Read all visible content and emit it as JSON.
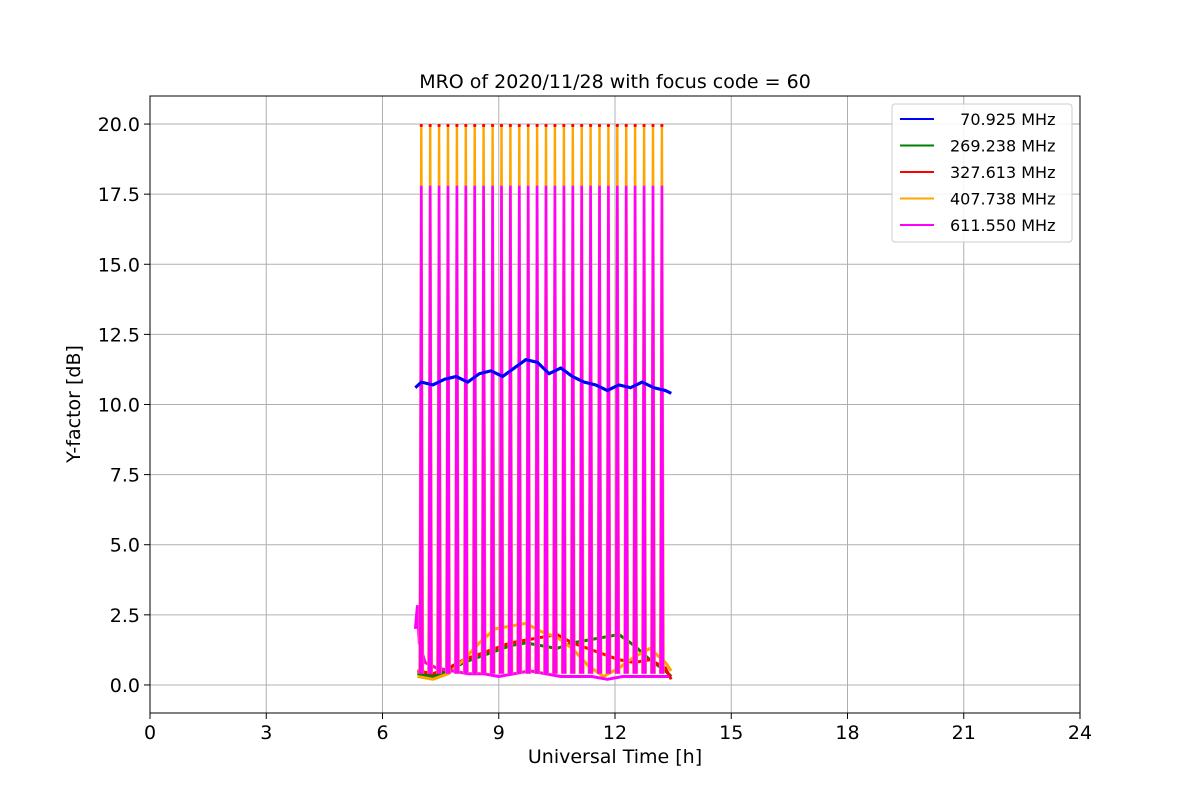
{
  "chart_data": {
    "type": "line",
    "title": "MRO of 2020/11/28 with focus code = 60",
    "xlabel": "Universal Time [h]",
    "ylabel": "Y-factor [dB]",
    "xlim": [
      0,
      24
    ],
    "ylim": [
      -1.0,
      21.0
    ],
    "xticks": [
      0,
      3,
      6,
      9,
      12,
      15,
      18,
      21,
      24
    ],
    "xtick_labels": [
      "0",
      "3",
      "6",
      "9",
      "12",
      "15",
      "18",
      "21",
      "24"
    ],
    "yticks": [
      0.0,
      2.5,
      5.0,
      7.5,
      10.0,
      12.5,
      15.0,
      17.5,
      20.0
    ],
    "ytick_labels": [
      "0.0",
      "2.5",
      "5.0",
      "7.5",
      "10.0",
      "12.5",
      "15.0",
      "17.5",
      "20.0"
    ],
    "grid": true,
    "legend_position": "top-right",
    "spike_times": [
      7.0,
      7.23,
      7.46,
      7.69,
      7.92,
      8.15,
      8.38,
      8.61,
      8.84,
      9.07,
      9.3,
      9.53,
      9.76,
      9.99,
      10.22,
      10.45,
      10.68,
      10.91,
      11.14,
      11.37,
      11.6,
      11.83,
      12.06,
      12.29,
      12.52,
      12.75,
      12.98,
      13.21
    ],
    "series": [
      {
        "name": "  70.925 MHz",
        "color": "#0000ff",
        "x": [
          6.85,
          7.0,
          7.3,
          7.6,
          7.9,
          8.2,
          8.5,
          8.8,
          9.1,
          9.4,
          9.7,
          10.0,
          10.3,
          10.6,
          10.9,
          11.2,
          11.5,
          11.8,
          12.1,
          12.4,
          12.7,
          13.0,
          13.3,
          13.45
        ],
        "y": [
          10.6,
          10.8,
          10.7,
          10.9,
          11.0,
          10.8,
          11.1,
          11.2,
          11.0,
          11.3,
          11.6,
          11.5,
          11.1,
          11.3,
          11.0,
          10.8,
          10.7,
          10.5,
          10.7,
          10.6,
          10.8,
          10.6,
          10.5,
          10.4
        ]
      },
      {
        "name": "269.238 MHz",
        "color": "#008000",
        "x": [
          6.9,
          7.3,
          7.7,
          8.1,
          8.5,
          8.9,
          9.3,
          9.7,
          10.1,
          10.5,
          10.9,
          11.3,
          11.7,
          12.1,
          12.5,
          12.9,
          13.3,
          13.45
        ],
        "y": [
          0.4,
          0.3,
          0.5,
          0.8,
          1.0,
          1.2,
          1.4,
          1.5,
          1.4,
          1.3,
          1.5,
          1.6,
          1.7,
          1.8,
          1.4,
          0.9,
          0.5,
          0.3
        ]
      },
      {
        "name": "327.613 MHz",
        "color": "#ff0000",
        "x": [
          6.9,
          7.3,
          7.7,
          8.1,
          8.5,
          8.9,
          9.3,
          9.7,
          10.1,
          10.5,
          10.9,
          11.3,
          11.7,
          12.1,
          12.5,
          12.9,
          13.3,
          13.45
        ],
        "y": [
          0.5,
          0.4,
          0.6,
          0.9,
          1.1,
          1.3,
          1.5,
          1.6,
          1.7,
          1.8,
          1.5,
          1.3,
          1.1,
          0.9,
          0.8,
          0.9,
          0.6,
          0.2
        ]
      },
      {
        "name": "407.738 MHz",
        "color": "#ffa500",
        "x": [
          6.9,
          7.3,
          7.7,
          8.1,
          8.5,
          8.9,
          9.3,
          9.7,
          10.1,
          10.5,
          10.9,
          11.3,
          11.7,
          12.1,
          12.5,
          12.9,
          13.3,
          13.45
        ],
        "y": [
          0.3,
          0.2,
          0.4,
          0.9,
          1.5,
          2.0,
          2.1,
          2.2,
          1.9,
          1.7,
          1.3,
          0.7,
          0.3,
          0.6,
          1.0,
          1.3,
          0.8,
          0.5
        ]
      },
      {
        "name": "611.550 MHz",
        "color": "#ff00ff",
        "x": [
          6.85,
          6.9,
          6.95,
          7.1,
          7.4,
          7.8,
          8.2,
          8.6,
          9.0,
          9.4,
          9.8,
          10.2,
          10.6,
          11.0,
          11.4,
          11.8,
          12.2,
          12.6,
          13.0,
          13.4
        ],
        "y": [
          2.0,
          2.8,
          1.5,
          0.8,
          0.6,
          0.5,
          0.4,
          0.4,
          0.3,
          0.4,
          0.5,
          0.4,
          0.3,
          0.3,
          0.3,
          0.2,
          0.3,
          0.3,
          0.3,
          0.3
        ]
      }
    ]
  }
}
